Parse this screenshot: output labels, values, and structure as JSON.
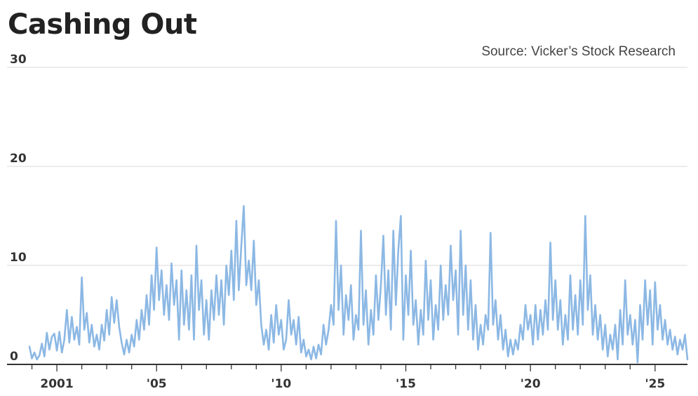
{
  "chart_data": {
    "type": "line",
    "title": "Cashing Out",
    "source": "Source: Vicker’s Stock Research",
    "xlabel": "",
    "ylabel": "",
    "ylim": [
      0,
      30
    ],
    "yticks": [
      0,
      10,
      20,
      30
    ],
    "xticks": [
      {
        "year": 2001,
        "label": "2001"
      },
      {
        "year": 2005,
        "label": "'05"
      },
      {
        "year": 2010,
        "label": "'10"
      },
      {
        "year": 2015,
        "label": "'15"
      },
      {
        "year": 2020,
        "label": "'20"
      },
      {
        "year": 2025,
        "label": "'25"
      }
    ],
    "minor_tick_years": [
      2000,
      2001,
      2002,
      2003,
      2004,
      2005,
      2006,
      2007,
      2008,
      2009,
      2010,
      2011,
      2012,
      2013,
      2014,
      2015,
      2016,
      2017,
      2018,
      2019,
      2020,
      2021,
      2022,
      2023,
      2024,
      2025
    ],
    "xlim": [
      1999.0,
      2026.3
    ],
    "grid": true,
    "line_color": "#8cb8e4",
    "series": [
      {
        "name": "",
        "points": [
          [
            1999.9,
            1.8
          ],
          [
            2000.0,
            0.6
          ],
          [
            2000.1,
            1.2
          ],
          [
            2000.2,
            0.5
          ],
          [
            2000.3,
            0.9
          ],
          [
            2000.4,
            2.1
          ],
          [
            2000.5,
            0.8
          ],
          [
            2000.6,
            3.2
          ],
          [
            2000.7,
            1.5
          ],
          [
            2000.8,
            2.8
          ],
          [
            2000.9,
            3.1
          ],
          [
            2001.0,
            1.4
          ],
          [
            2001.1,
            3.3
          ],
          [
            2001.2,
            1.2
          ],
          [
            2001.3,
            2.5
          ],
          [
            2001.4,
            5.5
          ],
          [
            2001.5,
            2.2
          ],
          [
            2001.6,
            4.8
          ],
          [
            2001.7,
            2.5
          ],
          [
            2001.8,
            3.8
          ],
          [
            2001.9,
            2.0
          ],
          [
            2002.0,
            8.8
          ],
          [
            2002.1,
            3.5
          ],
          [
            2002.2,
            5.2
          ],
          [
            2002.3,
            2.2
          ],
          [
            2002.4,
            4.0
          ],
          [
            2002.5,
            1.8
          ],
          [
            2002.6,
            3.0
          ],
          [
            2002.7,
            1.5
          ],
          [
            2002.8,
            4.0
          ],
          [
            2002.9,
            2.4
          ],
          [
            2003.0,
            5.5
          ],
          [
            2003.1,
            3.0
          ],
          [
            2003.2,
            6.8
          ],
          [
            2003.3,
            4.2
          ],
          [
            2003.4,
            6.5
          ],
          [
            2003.5,
            3.8
          ],
          [
            2003.6,
            2.2
          ],
          [
            2003.7,
            1.0
          ],
          [
            2003.8,
            2.5
          ],
          [
            2003.9,
            1.2
          ],
          [
            2004.0,
            3.0
          ],
          [
            2004.1,
            1.8
          ],
          [
            2004.2,
            4.5
          ],
          [
            2004.3,
            2.5
          ],
          [
            2004.4,
            5.5
          ],
          [
            2004.5,
            3.5
          ],
          [
            2004.6,
            7.0
          ],
          [
            2004.7,
            4.0
          ],
          [
            2004.8,
            9.0
          ],
          [
            2004.9,
            5.5
          ],
          [
            2005.0,
            11.8
          ],
          [
            2005.1,
            6.5
          ],
          [
            2005.2,
            9.5
          ],
          [
            2005.3,
            5.0
          ],
          [
            2005.4,
            8.0
          ],
          [
            2005.5,
            4.5
          ],
          [
            2005.6,
            10.2
          ],
          [
            2005.7,
            6.0
          ],
          [
            2005.8,
            8.5
          ],
          [
            2005.9,
            2.5
          ],
          [
            2006.0,
            9.5
          ],
          [
            2006.1,
            4.0
          ],
          [
            2006.2,
            7.5
          ],
          [
            2006.3,
            3.5
          ],
          [
            2006.4,
            9.0
          ],
          [
            2006.5,
            2.5
          ],
          [
            2006.6,
            12.0
          ],
          [
            2006.7,
            5.5
          ],
          [
            2006.8,
            8.5
          ],
          [
            2006.9,
            3.0
          ],
          [
            2007.0,
            6.5
          ],
          [
            2007.1,
            2.5
          ],
          [
            2007.2,
            7.5
          ],
          [
            2007.3,
            4.5
          ],
          [
            2007.4,
            9.0
          ],
          [
            2007.5,
            5.0
          ],
          [
            2007.6,
            8.5
          ],
          [
            2007.7,
            4.0
          ],
          [
            2007.8,
            10.0
          ],
          [
            2007.9,
            7.0
          ],
          [
            2008.0,
            11.5
          ],
          [
            2008.1,
            6.5
          ],
          [
            2008.2,
            14.5
          ],
          [
            2008.3,
            7.5
          ],
          [
            2008.4,
            12.0
          ],
          [
            2008.5,
            16.0
          ],
          [
            2008.6,
            8.0
          ],
          [
            2008.7,
            10.5
          ],
          [
            2008.8,
            7.5
          ],
          [
            2008.9,
            12.5
          ],
          [
            2009.0,
            6.0
          ],
          [
            2009.1,
            8.5
          ],
          [
            2009.2,
            4.0
          ],
          [
            2009.3,
            2.0
          ],
          [
            2009.4,
            3.5
          ],
          [
            2009.5,
            1.5
          ],
          [
            2009.6,
            5.0
          ],
          [
            2009.7,
            2.2
          ],
          [
            2009.8,
            6.0
          ],
          [
            2009.9,
            3.0
          ],
          [
            2010.0,
            4.5
          ],
          [
            2010.1,
            1.5
          ],
          [
            2010.2,
            2.5
          ],
          [
            2010.3,
            6.5
          ],
          [
            2010.4,
            3.0
          ],
          [
            2010.5,
            4.5
          ],
          [
            2010.6,
            2.0
          ],
          [
            2010.7,
            4.8
          ],
          [
            2010.8,
            1.2
          ],
          [
            2010.9,
            2.5
          ],
          [
            2011.0,
            0.8
          ],
          [
            2011.1,
            1.5
          ],
          [
            2011.2,
            0.5
          ],
          [
            2011.3,
            1.8
          ],
          [
            2011.4,
            0.6
          ],
          [
            2011.5,
            2.0
          ],
          [
            2011.6,
            1.0
          ],
          [
            2011.7,
            4.0
          ],
          [
            2011.8,
            2.0
          ],
          [
            2011.9,
            3.5
          ],
          [
            2012.0,
            6.0
          ],
          [
            2012.1,
            4.0
          ],
          [
            2012.2,
            14.5
          ],
          [
            2012.3,
            5.5
          ],
          [
            2012.4,
            10.0
          ],
          [
            2012.5,
            3.0
          ],
          [
            2012.6,
            7.0
          ],
          [
            2012.7,
            4.5
          ],
          [
            2012.8,
            8.0
          ],
          [
            2012.9,
            2.5
          ],
          [
            2013.0,
            5.0
          ],
          [
            2013.1,
            3.5
          ],
          [
            2013.2,
            13.5
          ],
          [
            2013.3,
            4.0
          ],
          [
            2013.4,
            7.5
          ],
          [
            2013.5,
            2.0
          ],
          [
            2013.6,
            5.5
          ],
          [
            2013.7,
            3.0
          ],
          [
            2013.8,
            9.0
          ],
          [
            2013.9,
            4.5
          ],
          [
            2014.0,
            8.0
          ],
          [
            2014.1,
            13.0
          ],
          [
            2014.2,
            5.0
          ],
          [
            2014.3,
            9.5
          ],
          [
            2014.4,
            3.5
          ],
          [
            2014.5,
            13.5
          ],
          [
            2014.6,
            6.0
          ],
          [
            2014.7,
            11.5
          ],
          [
            2014.8,
            15.0
          ],
          [
            2014.9,
            2.5
          ],
          [
            2015.0,
            9.0
          ],
          [
            2015.1,
            5.0
          ],
          [
            2015.2,
            11.5
          ],
          [
            2015.3,
            4.0
          ],
          [
            2015.4,
            6.5
          ],
          [
            2015.5,
            2.0
          ],
          [
            2015.6,
            5.5
          ],
          [
            2015.7,
            3.0
          ],
          [
            2015.8,
            10.5
          ],
          [
            2015.9,
            4.5
          ],
          [
            2016.0,
            8.5
          ],
          [
            2016.1,
            2.5
          ],
          [
            2016.2,
            6.0
          ],
          [
            2016.3,
            3.5
          ],
          [
            2016.4,
            10.0
          ],
          [
            2016.5,
            4.5
          ],
          [
            2016.6,
            8.0
          ],
          [
            2016.7,
            5.0
          ],
          [
            2016.8,
            12.0
          ],
          [
            2016.9,
            6.5
          ],
          [
            2017.0,
            9.5
          ],
          [
            2017.1,
            3.0
          ],
          [
            2017.2,
            13.5
          ],
          [
            2017.3,
            5.0
          ],
          [
            2017.4,
            10.0
          ],
          [
            2017.5,
            3.5
          ],
          [
            2017.6,
            8.5
          ],
          [
            2017.7,
            2.5
          ],
          [
            2017.8,
            6.0
          ],
          [
            2017.9,
            1.5
          ],
          [
            2018.0,
            4.0
          ],
          [
            2018.1,
            2.0
          ],
          [
            2018.2,
            5.0
          ],
          [
            2018.3,
            3.5
          ],
          [
            2018.4,
            13.3
          ],
          [
            2018.5,
            4.0
          ],
          [
            2018.6,
            6.5
          ],
          [
            2018.7,
            2.5
          ],
          [
            2018.8,
            5.0
          ],
          [
            2018.9,
            1.5
          ],
          [
            2019.0,
            3.5
          ],
          [
            2019.1,
            0.8
          ],
          [
            2019.2,
            2.5
          ],
          [
            2019.3,
            1.0
          ],
          [
            2019.4,
            2.5
          ],
          [
            2019.5,
            1.5
          ],
          [
            2019.6,
            4.0
          ],
          [
            2019.7,
            2.5
          ],
          [
            2019.8,
            6.0
          ],
          [
            2019.9,
            3.5
          ],
          [
            2020.0,
            5.0
          ],
          [
            2020.1,
            2.0
          ],
          [
            2020.2,
            6.0
          ],
          [
            2020.3,
            2.5
          ],
          [
            2020.4,
            5.5
          ],
          [
            2020.5,
            3.0
          ],
          [
            2020.6,
            6.5
          ],
          [
            2020.7,
            3.5
          ],
          [
            2020.8,
            12.3
          ],
          [
            2020.9,
            4.5
          ],
          [
            2021.0,
            8.5
          ],
          [
            2021.1,
            3.5
          ],
          [
            2021.2,
            6.5
          ],
          [
            2021.3,
            2.0
          ],
          [
            2021.4,
            5.0
          ],
          [
            2021.5,
            2.5
          ],
          [
            2021.6,
            9.0
          ],
          [
            2021.7,
            3.5
          ],
          [
            2021.8,
            7.0
          ],
          [
            2021.9,
            3.0
          ],
          [
            2022.0,
            8.5
          ],
          [
            2022.1,
            4.0
          ],
          [
            2022.2,
            15.0
          ],
          [
            2022.3,
            5.5
          ],
          [
            2022.4,
            9.0
          ],
          [
            2022.5,
            3.0
          ],
          [
            2022.6,
            6.0
          ],
          [
            2022.7,
            2.5
          ],
          [
            2022.8,
            5.0
          ],
          [
            2022.9,
            1.5
          ],
          [
            2023.0,
            4.0
          ],
          [
            2023.1,
            0.8
          ],
          [
            2023.2,
            3.0
          ],
          [
            2023.3,
            1.5
          ],
          [
            2023.4,
            4.0
          ],
          [
            2023.5,
            0.5
          ],
          [
            2023.6,
            5.5
          ],
          [
            2023.7,
            2.0
          ],
          [
            2023.8,
            8.5
          ],
          [
            2023.9,
            3.0
          ],
          [
            2024.0,
            5.0
          ],
          [
            2024.1,
            2.0
          ],
          [
            2024.2,
            4.5
          ],
          [
            2024.3,
            0.2
          ],
          [
            2024.4,
            6.0
          ],
          [
            2024.5,
            2.5
          ],
          [
            2024.6,
            8.5
          ],
          [
            2024.7,
            4.0
          ],
          [
            2024.8,
            7.5
          ],
          [
            2024.9,
            2.0
          ],
          [
            2025.0,
            8.3
          ],
          [
            2025.1,
            3.5
          ],
          [
            2025.2,
            6.0
          ],
          [
            2025.3,
            2.5
          ],
          [
            2025.4,
            4.5
          ],
          [
            2025.5,
            2.0
          ],
          [
            2025.6,
            3.5
          ],
          [
            2025.7,
            1.5
          ],
          [
            2025.8,
            2.8
          ],
          [
            2025.9,
            1.0
          ],
          [
            2026.0,
            2.5
          ],
          [
            2026.1,
            1.5
          ],
          [
            2026.2,
            3.0
          ],
          [
            2026.3,
            0.5
          ]
        ]
      }
    ]
  }
}
